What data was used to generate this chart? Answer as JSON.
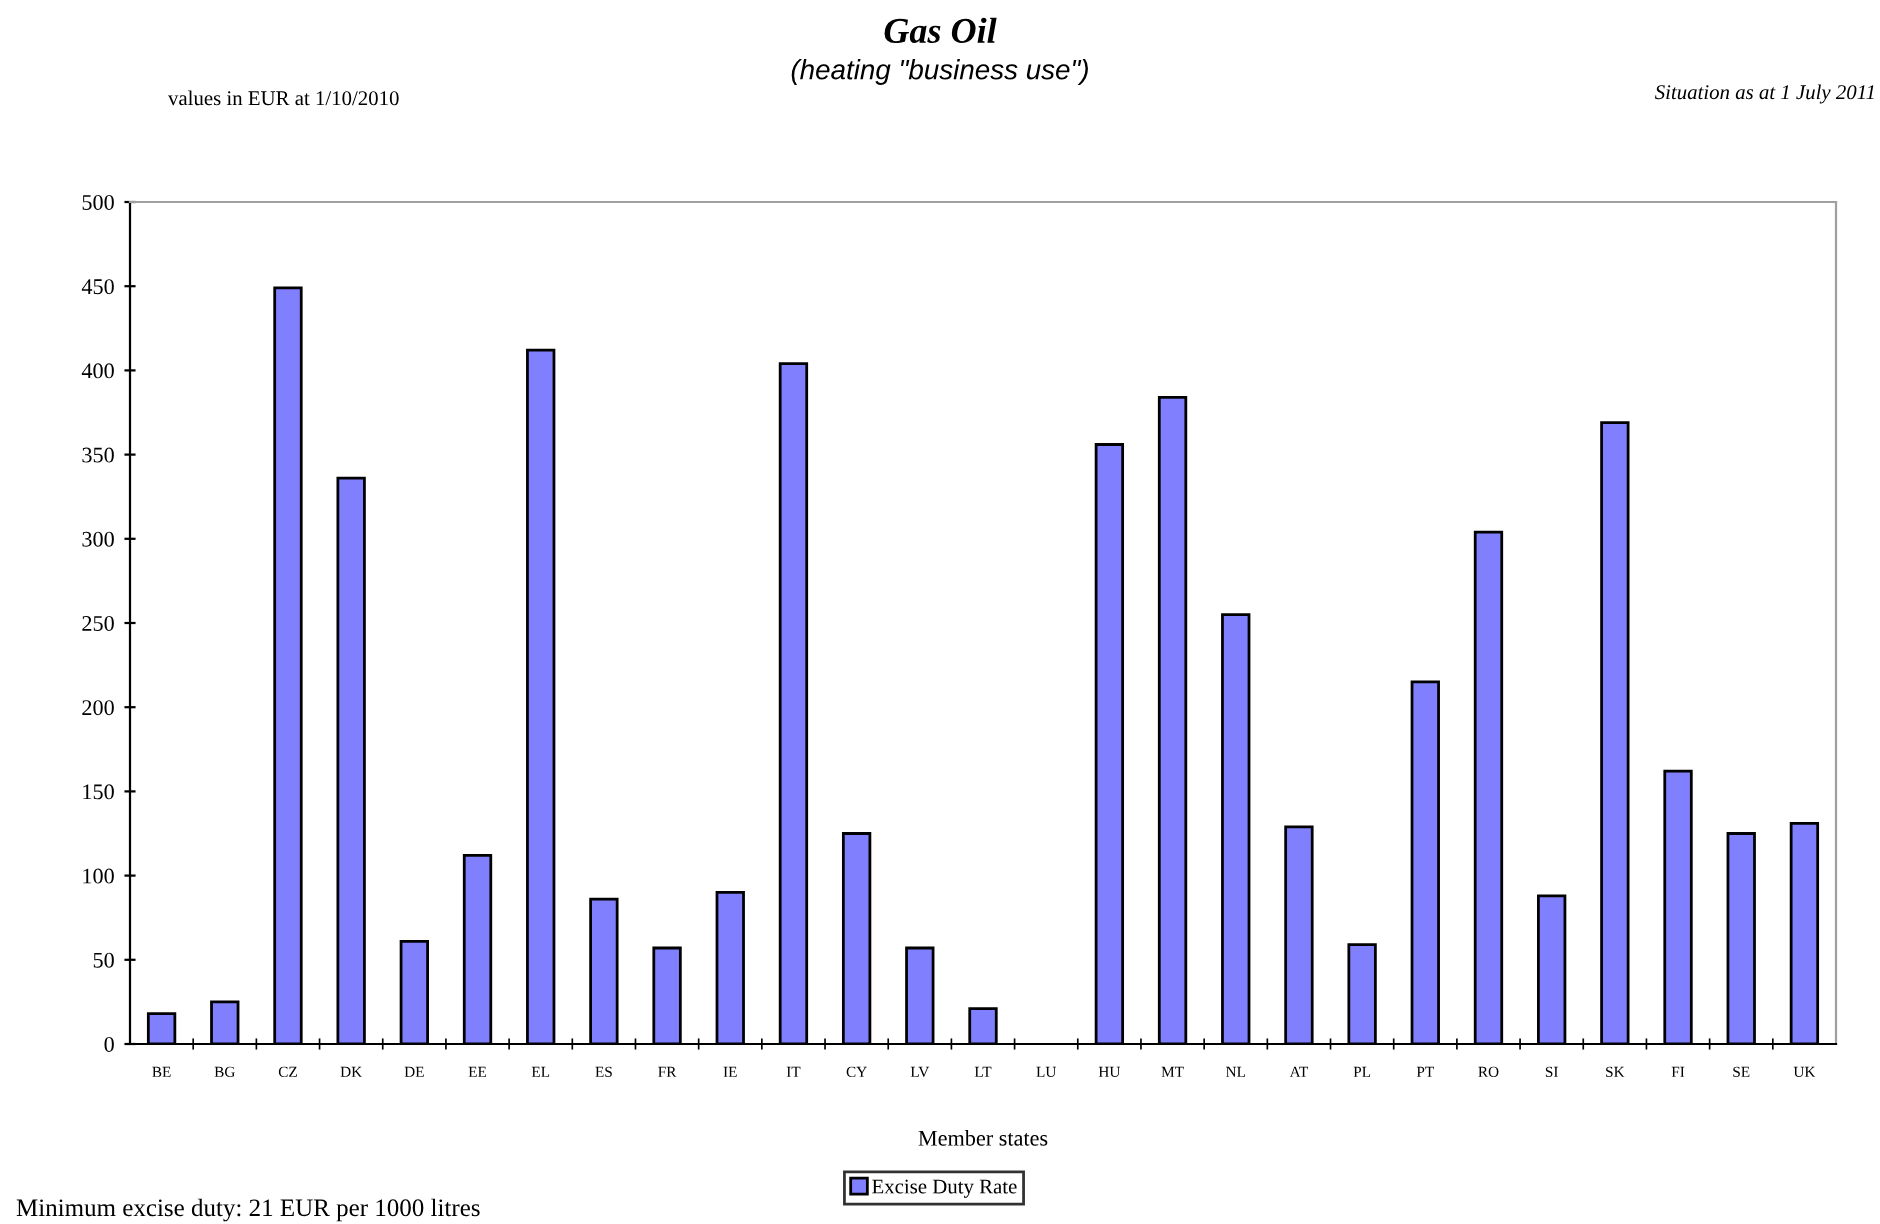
{
  "chart_data": {
    "type": "bar",
    "title": "Gas Oil",
    "subtitle": "(heating \"business use\")",
    "xlabel": "Member states",
    "categories": [
      "BE",
      "BG",
      "CZ",
      "DK",
      "DE",
      "EE",
      "EL",
      "ES",
      "FR",
      "IE",
      "IT",
      "CY",
      "LV",
      "LT",
      "LU",
      "HU",
      "MT",
      "NL",
      "AT",
      "PL",
      "PT",
      "RO",
      "SI",
      "SK",
      "FI",
      "SE",
      "UK"
    ],
    "series": [
      {
        "name": "Excise Duty Rate",
        "color": "#8080ff",
        "values": [
          18,
          25,
          449,
          336,
          61,
          112,
          412,
          86,
          57,
          90,
          404,
          125,
          57,
          21,
          null,
          356,
          384,
          255,
          129,
          59,
          215,
          304,
          88,
          369,
          162,
          125,
          131
        ]
      }
    ],
    "ylim": [
      0,
      500
    ],
    "yticks": [
      0,
      50,
      100,
      150,
      200,
      250,
      300,
      350,
      400,
      450,
      500
    ],
    "grid": false,
    "legend": "bottom",
    "annotations": [
      "values in EUR at 1/10/2010",
      "Situation as at 1 July 2011",
      "Minimum excise duty: 21 EUR per 1000 litres"
    ]
  }
}
